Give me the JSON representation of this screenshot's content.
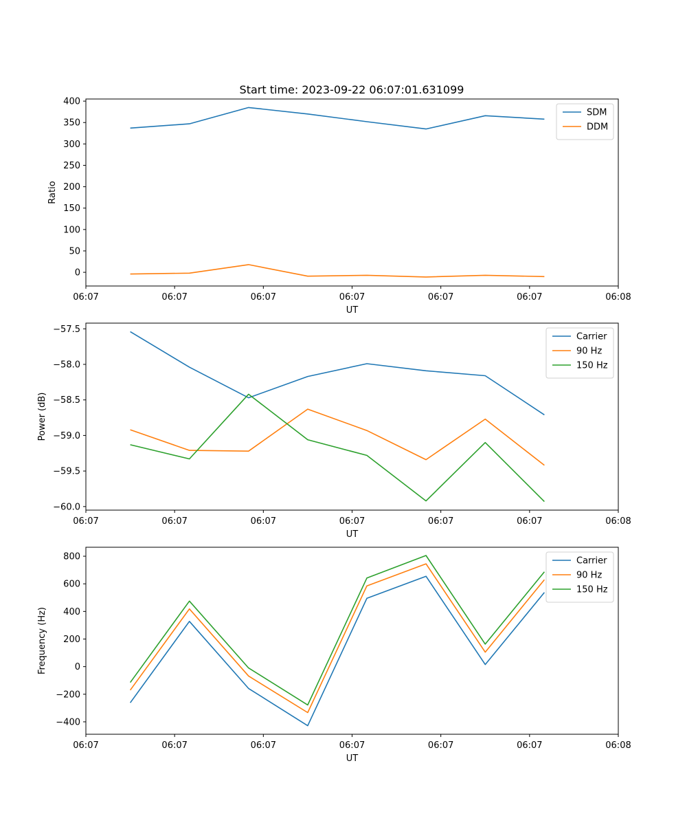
{
  "title": "Start time: 2023-09-22 06:07:01.631099",
  "colors": {
    "blue": "#1f77b4",
    "orange": "#ff7f0e",
    "green": "#2ca02c"
  },
  "chart_data": [
    {
      "type": "line",
      "title": "Start time: 2023-09-22 06:07:01.631099",
      "xlabel": "UT",
      "ylabel": "Ratio",
      "x": [
        1,
        2,
        3,
        4,
        5,
        6,
        7,
        8
      ],
      "xlim": [
        0.25,
        9.25
      ],
      "xticks": [
        0.25,
        1.75,
        3.25,
        4.75,
        6.25,
        7.75,
        9.25
      ],
      "xtick_labels": [
        "06:07",
        "06:07",
        "06:07",
        "06:07",
        "06:07",
        "06:07",
        "06:08"
      ],
      "ylim": [
        -32,
        405
      ],
      "yticks": [
        0,
        50,
        100,
        150,
        200,
        250,
        300,
        350,
        400
      ],
      "ytick_labels": [
        "0",
        "50",
        "100",
        "150",
        "200",
        "250",
        "300",
        "350",
        "400"
      ],
      "legend_position": "top-right",
      "series": [
        {
          "name": "SDM",
          "color": "#1f77b4",
          "values": [
            337,
            347,
            385,
            370,
            352,
            335,
            366,
            358
          ]
        },
        {
          "name": "DDM",
          "color": "#ff7f0e",
          "values": [
            -4,
            -2,
            18,
            -9,
            -7,
            -11,
            -7,
            -10
          ]
        }
      ]
    },
    {
      "type": "line",
      "xlabel": "UT",
      "ylabel": "Power (dB)",
      "x": [
        1,
        2,
        3,
        4,
        5,
        6,
        7,
        8
      ],
      "xlim": [
        0.25,
        9.25
      ],
      "xticks": [
        0.25,
        1.75,
        3.25,
        4.75,
        6.25,
        7.75,
        9.25
      ],
      "xtick_labels": [
        "06:07",
        "06:07",
        "06:07",
        "06:07",
        "06:07",
        "06:07",
        "06:08"
      ],
      "ylim": [
        -60.05,
        -57.42
      ],
      "yticks": [
        -60.0,
        -59.5,
        -59.0,
        -58.5,
        -58.0,
        -57.5
      ],
      "ytick_labels": [
        "−60.0",
        "−59.5",
        "−59.0",
        "−58.5",
        "−58.0",
        "−57.5"
      ],
      "legend_position": "top-right",
      "series": [
        {
          "name": "Carrier",
          "color": "#1f77b4",
          "values": [
            -57.54,
            -58.04,
            -58.47,
            -58.17,
            -57.99,
            -58.09,
            -58.16,
            -58.71
          ]
        },
        {
          "name": "90 Hz",
          "color": "#ff7f0e",
          "values": [
            -58.92,
            -59.21,
            -59.22,
            -58.63,
            -58.93,
            -59.34,
            -58.77,
            -59.42
          ]
        },
        {
          "name": "150 Hz",
          "color": "#2ca02c",
          "values": [
            -59.13,
            -59.33,
            -58.42,
            -59.06,
            -59.28,
            -59.92,
            -59.1,
            -59.93
          ]
        }
      ]
    },
    {
      "type": "line",
      "xlabel": "UT",
      "ylabel": "Frequency (Hz)",
      "x": [
        1,
        2,
        3,
        4,
        5,
        6,
        7,
        8
      ],
      "xlim": [
        0.25,
        9.25
      ],
      "xticks": [
        0.25,
        1.75,
        3.25,
        4.75,
        6.25,
        7.75,
        9.25
      ],
      "xtick_labels": [
        "06:07",
        "06:07",
        "06:07",
        "06:07",
        "06:07",
        "06:07",
        "06:08"
      ],
      "ylim": [
        -490,
        865
      ],
      "yticks": [
        -400,
        -200,
        0,
        200,
        400,
        600,
        800
      ],
      "ytick_labels": [
        "−400",
        "−200",
        "0",
        "200",
        "400",
        "600",
        "800"
      ],
      "legend_position": "top-right",
      "series": [
        {
          "name": "Carrier",
          "color": "#1f77b4",
          "values": [
            -262,
            328,
            -158,
            -428,
            495,
            655,
            15,
            537
          ]
        },
        {
          "name": "90 Hz",
          "color": "#ff7f0e",
          "values": [
            -170,
            418,
            -68,
            -333,
            585,
            745,
            105,
            630
          ]
        },
        {
          "name": "150 Hz",
          "color": "#2ca02c",
          "values": [
            -115,
            475,
            -10,
            -278,
            642,
            805,
            163,
            687
          ]
        }
      ]
    }
  ]
}
